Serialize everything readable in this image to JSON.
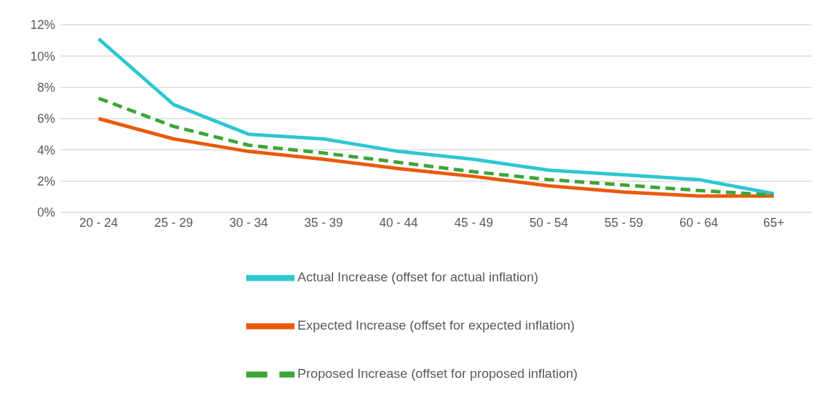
{
  "chart_data": {
    "type": "line",
    "categories": [
      "20 - 24",
      "25 - 29",
      "30 - 34",
      "35 - 39",
      "40 - 44",
      "45 - 49",
      "50 - 54",
      "55 - 59",
      "60 - 64",
      "65+"
    ],
    "series": [
      {
        "name": "Actual Increase (offset for actual inflation)",
        "color": "#2ec7d1",
        "values": [
          11.1,
          6.9,
          5.0,
          4.7,
          3.9,
          3.4,
          2.7,
          2.4,
          2.1,
          1.2
        ]
      },
      {
        "name": "Expected Increase (offset for expected inflation)",
        "color": "#ea5a0c",
        "values": [
          6.0,
          4.7,
          3.9,
          3.4,
          2.8,
          2.3,
          1.7,
          1.3,
          1.05,
          1.05
        ]
      },
      {
        "name": "Proposed Increase (offset for proposed inflation)",
        "color": "#3ea535",
        "values": [
          7.3,
          5.5,
          4.3,
          3.8,
          3.2,
          2.6,
          2.1,
          1.75,
          1.4,
          1.1
        ],
        "line_style": "dashed"
      }
    ],
    "ylim": [
      0,
      12
    ],
    "yticks": [
      {
        "value": 0,
        "label": "0%"
      },
      {
        "value": 2,
        "label": "2%"
      },
      {
        "value": 4,
        "label": "4%"
      },
      {
        "value": 6,
        "label": "6%"
      },
      {
        "value": 8,
        "label": "8%"
      },
      {
        "value": 10,
        "label": "10%"
      },
      {
        "value": 12,
        "label": "12%"
      }
    ],
    "grid": "y",
    "legend": "bottom",
    "marker": "none"
  }
}
